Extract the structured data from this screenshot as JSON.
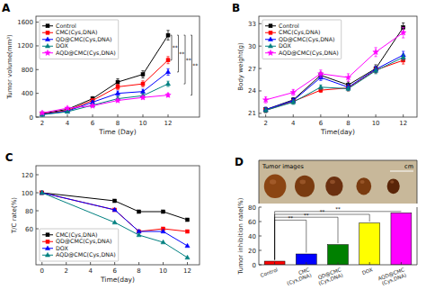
{
  "chart_data": [
    {
      "type": "line",
      "title": "A",
      "x_label": "Time (Day)",
      "y_label": "Tumor volume(mm³)",
      "xlim": [
        1.5,
        14.5
      ],
      "ylim": [
        0,
        1700
      ],
      "xticks": [
        2,
        4,
        6,
        8,
        10,
        12
      ],
      "yticks": [
        0,
        400,
        800,
        1200,
        1600
      ],
      "legend": "upper left",
      "grid": false,
      "series": [
        {
          "name": "Control",
          "color": "#000000",
          "marker": "square",
          "x": [
            2,
            4,
            6,
            8,
            10,
            12
          ],
          "values": [
            60,
            130,
            310,
            590,
            720,
            1380
          ],
          "errors": [
            15,
            20,
            35,
            55,
            60,
            80
          ]
        },
        {
          "name": "CMC(Cys,DNA)",
          "color": "#ff0000",
          "marker": "square",
          "x": [
            2,
            4,
            6,
            8,
            10,
            12
          ],
          "values": [
            50,
            110,
            280,
            510,
            560,
            960
          ],
          "errors": [
            12,
            18,
            30,
            45,
            50,
            60
          ]
        },
        {
          "name": "QD@CMC(Cys,DNA)",
          "color": "#0000ff",
          "marker": "triangle",
          "x": [
            2,
            4,
            6,
            8,
            10,
            12
          ],
          "values": [
            45,
            100,
            250,
            400,
            430,
            760
          ],
          "errors": [
            10,
            15,
            25,
            40,
            40,
            55
          ]
        },
        {
          "name": "DOX",
          "color": "#008080",
          "marker": "triangle",
          "x": [
            2,
            4,
            6,
            8,
            10,
            12
          ],
          "values": [
            40,
            90,
            200,
            310,
            360,
            560
          ],
          "errors": [
            8,
            12,
            20,
            30,
            35,
            45
          ]
        },
        {
          "name": "AQD@CMC(Cys,DNA)",
          "color": "#ff00ff",
          "marker": "star",
          "x": [
            2,
            4,
            6,
            8,
            10,
            12
          ],
          "values": [
            70,
            150,
            190,
            280,
            330,
            370
          ],
          "errors": [
            10,
            15,
            18,
            22,
            25,
            30
          ]
        }
      ],
      "annotations": [
        {
          "label": "**",
          "y1": 1380,
          "y2": 960
        },
        {
          "label": "**",
          "y1": 1380,
          "y2": 760
        },
        {
          "label": "**",
          "y1": 1380,
          "y2": 560
        },
        {
          "label": "**",
          "y1": 1380,
          "y2": 370
        }
      ]
    },
    {
      "type": "line",
      "title": "B",
      "x_label": "Time(day)",
      "y_label": "Body weight(g)",
      "xlim": [
        1.5,
        13
      ],
      "ylim": [
        20.5,
        34
      ],
      "xticks": [
        2,
        4,
        6,
        8,
        10,
        12
      ],
      "yticks": [
        21,
        24,
        27,
        30,
        33
      ],
      "legend": "upper left",
      "grid": false,
      "series": [
        {
          "name": "Control",
          "color": "#000000",
          "marker": "square",
          "x": [
            2,
            4,
            6,
            8,
            10,
            12
          ],
          "values": [
            21.5,
            22.8,
            26.1,
            24.8,
            27.0,
            32.5
          ],
          "errors": [
            0.3,
            0.3,
            0.4,
            0.4,
            0.5,
            0.6
          ]
        },
        {
          "name": "CMC(Cys,DNA)",
          "color": "#ff0000",
          "marker": "square",
          "x": [
            2,
            4,
            6,
            8,
            10,
            12
          ],
          "values": [
            21.4,
            22.6,
            24.1,
            24.4,
            26.8,
            28.1
          ],
          "errors": [
            0.3,
            0.3,
            0.3,
            0.4,
            0.4,
            0.5
          ]
        },
        {
          "name": "QD@CMC(Cys,DNA)",
          "color": "#0000ff",
          "marker": "triangle",
          "x": [
            2,
            4,
            6,
            8,
            10,
            12
          ],
          "values": [
            21.5,
            22.7,
            25.8,
            24.5,
            26.9,
            28.8
          ],
          "errors": [
            0.3,
            0.3,
            0.4,
            0.4,
            0.4,
            0.5
          ]
        },
        {
          "name": "DOX",
          "color": "#008080",
          "marker": "triangle",
          "x": [
            2,
            4,
            6,
            8,
            10,
            12
          ],
          "values": [
            21.4,
            22.5,
            24.5,
            24.3,
            26.7,
            28.5
          ],
          "errors": [
            0.3,
            0.3,
            0.3,
            0.3,
            0.4,
            0.4
          ]
        },
        {
          "name": "AQD@CMC(Cys,DNA)",
          "color": "#ff00ff",
          "marker": "star",
          "x": [
            2,
            4,
            6,
            8,
            10,
            12
          ],
          "values": [
            22.8,
            23.8,
            26.3,
            25.8,
            29.2,
            31.8
          ],
          "errors": [
            0.4,
            0.4,
            0.5,
            0.5,
            0.6,
            0.7
          ]
        }
      ]
    },
    {
      "type": "line",
      "title": "C",
      "x_label": "Time(day)",
      "y_label": "T/C rate(%)",
      "xlim": [
        -0.5,
        13
      ],
      "ylim": [
        20,
        130
      ],
      "xticks": [
        0,
        2,
        4,
        6,
        8,
        10,
        12
      ],
      "yticks": [
        60,
        80,
        100,
        120
      ],
      "legend": "lower left",
      "grid": false,
      "series": [
        {
          "name": "CMC(Cys,DNA)",
          "color": "#000000",
          "marker": "square",
          "x": [
            0,
            6,
            8,
            10,
            12
          ],
          "values": [
            100,
            91,
            79,
            79,
            70
          ]
        },
        {
          "name": "QD@CMC(Cys,DNA)",
          "color": "#ff0000",
          "marker": "square",
          "x": [
            0,
            6,
            8,
            10,
            12
          ],
          "values": [
            100,
            81,
            57,
            60,
            57
          ]
        },
        {
          "name": "DOX",
          "color": "#0000ff",
          "marker": "triangle",
          "x": [
            0,
            6,
            8,
            10,
            12
          ],
          "values": [
            100,
            81,
            57,
            57,
            41
          ]
        },
        {
          "name": "AQD@CMC(Cys,DNA)",
          "color": "#008080",
          "marker": "triangle",
          "x": [
            0,
            6,
            8,
            10,
            12
          ],
          "values": [
            100,
            67,
            53,
            45,
            28
          ]
        }
      ]
    },
    {
      "type": "image",
      "title": "D",
      "annotations": [
        {
          "label": "Tumor images"
        },
        {
          "label": "cm"
        }
      ],
      "color": "#c8b89a",
      "colors": [
        "#8B4513",
        "#7a3b10",
        "#6b3010",
        "#7a3b10",
        "#5a2508"
      ]
    },
    {
      "type": "bar",
      "y_label": "Tumor inhibition rate(%)",
      "categories": [
        "Control",
        "CMC\n(Cys,DNA)",
        "QD@CMC\n(Cys,DNA)",
        "DOX",
        "AQD@CMC\n(Cys,DNA)"
      ],
      "values": [
        5,
        15,
        28,
        58,
        72
      ],
      "colors": [
        "#ff0000",
        "#0000ff",
        "#008000",
        "#ffff00",
        "#ff00ff"
      ],
      "ylim": [
        0,
        80
      ],
      "yticks": [
        0,
        20,
        40,
        60,
        80
      ],
      "grid": false,
      "annotations": [
        {
          "label": "**",
          "from": 0,
          "to": 1,
          "y": 62
        },
        {
          "label": "**",
          "from": 0,
          "to": 2,
          "y": 66
        },
        {
          "label": "**",
          "from": 0,
          "to": 3,
          "y": 70
        },
        {
          "label": "**",
          "from": 0,
          "to": 4,
          "y": 74
        }
      ]
    }
  ]
}
